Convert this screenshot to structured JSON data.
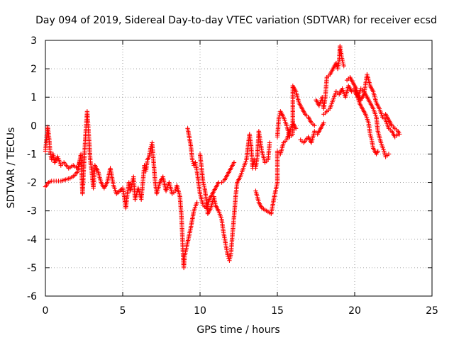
{
  "chart_data": {
    "type": "scatter",
    "title": "Day 094 of 2019, Sidereal Day-to-day VTEC variation (SDTVAR) for receiver ecsd",
    "xlabel": "GPS time / hours",
    "ylabel": "SDTVAR / TECUs",
    "xlim": [
      0,
      25
    ],
    "ylim": [
      -6,
      3
    ],
    "xticks": [
      "0",
      "5",
      "10",
      "15",
      "20",
      "25"
    ],
    "yticks": [
      "-6",
      "-5",
      "-4",
      "-3",
      "-2",
      "-1",
      "0",
      "1",
      "2",
      "3"
    ],
    "grid": true,
    "marker": "+",
    "color": "#ff0000",
    "series": [
      {
        "name": "SDTVAR",
        "points": [
          [
            0.0,
            -0.9
          ],
          [
            0.1,
            -0.3
          ],
          [
            0.15,
            -0.05
          ],
          [
            0.25,
            -0.5
          ],
          [
            0.3,
            -0.9
          ],
          [
            0.4,
            -1.2
          ],
          [
            0.5,
            -1.0
          ],
          [
            0.6,
            -1.3
          ],
          [
            0.8,
            -1.1
          ],
          [
            1.0,
            -1.4
          ],
          [
            1.2,
            -1.3
          ],
          [
            1.5,
            -1.5
          ],
          [
            1.8,
            -1.4
          ],
          [
            2.1,
            -1.5
          ],
          [
            2.2,
            -1.3
          ],
          [
            0.0,
            -2.15
          ],
          [
            0.2,
            -2.0
          ],
          [
            0.4,
            -1.95
          ],
          [
            0.7,
            -1.95
          ],
          [
            1.0,
            -1.95
          ],
          [
            1.3,
            -1.9
          ],
          [
            1.6,
            -1.85
          ],
          [
            1.9,
            -1.75
          ],
          [
            2.1,
            -1.6
          ],
          [
            2.3,
            -1.0
          ],
          [
            2.4,
            -2.4
          ],
          [
            2.5,
            -1.3
          ],
          [
            2.6,
            -0.3
          ],
          [
            2.7,
            0.5
          ],
          [
            2.8,
            -0.3
          ],
          [
            2.9,
            -1.2
          ],
          [
            3.0,
            -1.6
          ],
          [
            3.1,
            -2.2
          ],
          [
            3.2,
            -1.4
          ],
          [
            3.4,
            -1.6
          ],
          [
            3.6,
            -2.0
          ],
          [
            3.8,
            -2.2
          ],
          [
            4.0,
            -2.0
          ],
          [
            4.2,
            -1.5
          ],
          [
            4.4,
            -2.1
          ],
          [
            4.6,
            -2.4
          ],
          [
            5.0,
            -2.2
          ],
          [
            5.1,
            -2.5
          ],
          [
            5.2,
            -2.9
          ],
          [
            5.3,
            -2.4
          ],
          [
            5.4,
            -2.0
          ],
          [
            5.5,
            -2.3
          ],
          [
            5.7,
            -1.8
          ],
          [
            5.8,
            -2.6
          ],
          [
            6.0,
            -2.2
          ],
          [
            6.2,
            -2.6
          ],
          [
            6.3,
            -2.0
          ],
          [
            6.4,
            -1.4
          ],
          [
            6.5,
            -1.6
          ],
          [
            6.6,
            -1.2
          ],
          [
            6.7,
            -1.1
          ],
          [
            6.8,
            -0.8
          ],
          [
            6.9,
            -0.6
          ],
          [
            7.0,
            -1.3
          ],
          [
            7.1,
            -2.0
          ],
          [
            7.2,
            -2.4
          ],
          [
            7.4,
            -2.0
          ],
          [
            7.6,
            -1.8
          ],
          [
            7.8,
            -2.3
          ],
          [
            8.0,
            -2.0
          ],
          [
            8.2,
            -2.4
          ],
          [
            8.4,
            -2.3
          ],
          [
            8.5,
            -2.1
          ],
          [
            8.7,
            -2.5
          ],
          [
            8.8,
            -3.2
          ],
          [
            8.85,
            -3.8
          ],
          [
            8.9,
            -4.5
          ],
          [
            8.95,
            -5.0
          ],
          [
            9.0,
            -4.6
          ],
          [
            9.2,
            -4.1
          ],
          [
            9.4,
            -3.6
          ],
          [
            9.6,
            -3.0
          ],
          [
            9.8,
            -2.7
          ],
          [
            9.2,
            -0.1
          ],
          [
            9.4,
            -0.7
          ],
          [
            9.5,
            -1.2
          ],
          [
            9.6,
            -1.4
          ],
          [
            9.7,
            -1.3
          ],
          [
            9.8,
            -1.6
          ],
          [
            10.0,
            -2.4
          ],
          [
            10.2,
            -2.8
          ],
          [
            10.4,
            -2.9
          ],
          [
            10.6,
            -2.6
          ],
          [
            10.8,
            -2.4
          ],
          [
            11.0,
            -2.2
          ],
          [
            11.2,
            -2.0
          ],
          [
            11.4,
            -2.0
          ],
          [
            11.6,
            -1.9
          ],
          [
            11.8,
            -1.7
          ],
          [
            12.0,
            -1.5
          ],
          [
            12.2,
            -1.3
          ],
          [
            10.0,
            -1.0
          ],
          [
            10.1,
            -1.5
          ],
          [
            10.2,
            -2.0
          ],
          [
            10.3,
            -2.2
          ],
          [
            10.45,
            -2.8
          ],
          [
            10.5,
            -3.1
          ],
          [
            10.7,
            -2.9
          ],
          [
            10.9,
            -2.5
          ],
          [
            11.0,
            -2.8
          ],
          [
            11.2,
            -3.0
          ],
          [
            11.4,
            -3.3
          ],
          [
            11.5,
            -3.7
          ],
          [
            11.6,
            -4.0
          ],
          [
            11.7,
            -4.3
          ],
          [
            11.8,
            -4.6
          ],
          [
            11.9,
            -4.75
          ],
          [
            12.0,
            -4.5
          ],
          [
            12.1,
            -3.8
          ],
          [
            12.2,
            -3.2
          ],
          [
            12.3,
            -2.5
          ],
          [
            12.4,
            -2.0
          ],
          [
            12.6,
            -1.8
          ],
          [
            12.8,
            -1.5
          ],
          [
            13.0,
            -1.2
          ],
          [
            13.2,
            -0.3
          ],
          [
            13.3,
            -0.7
          ],
          [
            13.4,
            -1.5
          ],
          [
            13.5,
            -1.2
          ],
          [
            13.6,
            -1.5
          ],
          [
            13.7,
            -1.1
          ],
          [
            13.8,
            -0.2
          ],
          [
            14.0,
            -0.9
          ],
          [
            14.2,
            -1.3
          ],
          [
            14.4,
            -1.2
          ],
          [
            14.5,
            -0.6
          ],
          [
            13.6,
            -2.3
          ],
          [
            13.8,
            -2.7
          ],
          [
            14.0,
            -2.9
          ],
          [
            14.3,
            -3.0
          ],
          [
            14.6,
            -3.1
          ],
          [
            14.8,
            -2.5
          ],
          [
            15.0,
            -2.0
          ],
          [
            15.0,
            -0.9
          ],
          [
            15.2,
            -1.0
          ],
          [
            15.4,
            -0.6
          ],
          [
            15.6,
            -0.5
          ],
          [
            15.8,
            -0.2
          ],
          [
            16.0,
            0.1
          ],
          [
            16.2,
            -0.1
          ],
          [
            15.0,
            -0.4
          ],
          [
            15.1,
            0.3
          ],
          [
            15.2,
            0.5
          ],
          [
            15.4,
            0.3
          ],
          [
            15.6,
            0.0
          ],
          [
            15.8,
            -0.4
          ],
          [
            16.0,
            -0.3
          ],
          [
            16.0,
            1.4
          ],
          [
            16.2,
            1.2
          ],
          [
            16.4,
            0.8
          ],
          [
            16.6,
            0.6
          ],
          [
            16.8,
            0.4
          ],
          [
            17.0,
            0.3
          ],
          [
            17.2,
            0.1
          ],
          [
            17.4,
            0.0
          ],
          [
            16.5,
            -0.5
          ],
          [
            16.7,
            -0.6
          ],
          [
            17.0,
            -0.4
          ],
          [
            17.2,
            -0.6
          ],
          [
            17.4,
            -0.2
          ],
          [
            17.6,
            -0.3
          ],
          [
            17.8,
            -0.1
          ],
          [
            18.0,
            0.1
          ],
          [
            17.5,
            0.9
          ],
          [
            17.7,
            0.7
          ],
          [
            17.9,
            1.0
          ],
          [
            18.0,
            0.6
          ],
          [
            18.1,
            1.0
          ],
          [
            18.2,
            1.7
          ],
          [
            18.4,
            1.8
          ],
          [
            18.6,
            2.0
          ],
          [
            18.8,
            2.2
          ],
          [
            18.9,
            2.0
          ],
          [
            19.0,
            2.3
          ],
          [
            19.05,
            2.8
          ],
          [
            19.1,
            2.6
          ],
          [
            19.2,
            2.3
          ],
          [
            19.3,
            2.1
          ],
          [
            18.0,
            0.4
          ],
          [
            18.2,
            0.5
          ],
          [
            18.4,
            0.6
          ],
          [
            18.6,
            0.9
          ],
          [
            18.8,
            1.2
          ],
          [
            19.0,
            1.1
          ],
          [
            19.2,
            1.3
          ],
          [
            19.4,
            1.0
          ],
          [
            19.6,
            1.4
          ],
          [
            19.8,
            1.2
          ],
          [
            20.0,
            1.3
          ],
          [
            20.2,
            1.1
          ],
          [
            20.4,
            0.9
          ],
          [
            20.6,
            1.1
          ],
          [
            20.8,
            1.8
          ],
          [
            21.0,
            1.4
          ],
          [
            21.2,
            1.2
          ],
          [
            21.4,
            0.8
          ],
          [
            21.6,
            0.6
          ],
          [
            21.8,
            0.3
          ],
          [
            22.0,
            0.2
          ],
          [
            22.2,
            -0.1
          ],
          [
            22.4,
            -0.2
          ],
          [
            22.6,
            -0.4
          ],
          [
            22.8,
            -0.3
          ],
          [
            19.5,
            1.6
          ],
          [
            19.7,
            1.7
          ],
          [
            19.9,
            1.5
          ],
          [
            20.1,
            1.3
          ],
          [
            20.3,
            0.8
          ],
          [
            20.5,
            0.6
          ],
          [
            20.7,
            0.4
          ],
          [
            20.9,
            0.1
          ],
          [
            21.0,
            -0.3
          ],
          [
            21.1,
            -0.5
          ],
          [
            21.2,
            -0.8
          ],
          [
            21.4,
            -1.0
          ],
          [
            21.5,
            -0.9
          ],
          [
            20.0,
            1.2
          ],
          [
            20.2,
            1.0
          ],
          [
            20.4,
            1.3
          ],
          [
            20.6,
            1.2
          ],
          [
            20.8,
            1.0
          ],
          [
            21.0,
            0.8
          ],
          [
            21.2,
            0.6
          ],
          [
            21.4,
            0.3
          ],
          [
            21.5,
            -0.2
          ],
          [
            21.7,
            -0.6
          ],
          [
            21.9,
            -0.9
          ],
          [
            22.0,
            -1.1
          ],
          [
            22.2,
            -1.0
          ],
          [
            21.8,
            0.3
          ],
          [
            22.0,
            0.4
          ],
          [
            22.2,
            0.2
          ],
          [
            22.4,
            0.0
          ],
          [
            22.6,
            -0.1
          ],
          [
            22.8,
            -0.2
          ],
          [
            22.9,
            -0.3
          ]
        ]
      }
    ]
  }
}
